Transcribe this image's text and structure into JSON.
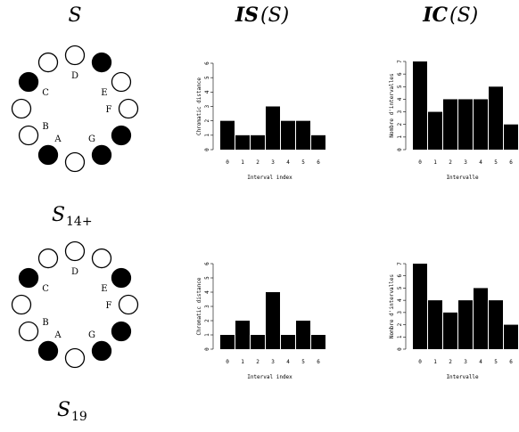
{
  "headers": {
    "set": "S",
    "is_prefix": "IS",
    "is_paren": "(S)",
    "ic_prefix": "IC",
    "ic_paren": "(S)"
  },
  "rows": [
    {
      "label_main": "S",
      "label_sub": "14+",
      "circle": {
        "labels": [
          "D",
          "E",
          "F",
          "G",
          "A",
          "B",
          "C"
        ],
        "filled": [
          false,
          true,
          false,
          false,
          true,
          true,
          false,
          true,
          false,
          false,
          true,
          false
        ]
      }
    },
    {
      "label_main": "S",
      "label_sub": "19",
      "circle": {
        "labels": [
          "D",
          "E",
          "F",
          "G",
          "A",
          "B",
          "C"
        ],
        "filled": [
          false,
          false,
          true,
          false,
          true,
          true,
          false,
          true,
          false,
          false,
          true,
          false
        ]
      }
    }
  ],
  "chart_data": [
    {
      "type": "bar",
      "xlabel": "Interval index",
      "ylabel": "Chromatic distance",
      "categories": [
        "0",
        "1",
        "2",
        "3",
        "4",
        "5",
        "6"
      ],
      "values": [
        2,
        1,
        1,
        3,
        2,
        2,
        1
      ],
      "ylim": [
        0,
        6
      ],
      "yticks": [
        "0",
        "1",
        "2",
        "3",
        "4",
        "5",
        "6"
      ]
    },
    {
      "type": "bar",
      "xlabel": "Intervalle",
      "ylabel": "Nombre d'intervalles",
      "categories": [
        "0",
        "1",
        "2",
        "3",
        "4",
        "5",
        "6"
      ],
      "values": [
        7,
        3,
        4,
        4,
        4,
        5,
        2
      ],
      "ylim": [
        0,
        7
      ],
      "yticks": [
        "0",
        "1",
        "2",
        "3",
        "4",
        "5",
        "6",
        "7"
      ]
    },
    {
      "type": "bar",
      "xlabel": "Interval index",
      "ylabel": "Chromatic distance",
      "categories": [
        "0",
        "1",
        "2",
        "3",
        "4",
        "5",
        "6"
      ],
      "values": [
        1,
        2,
        1,
        4,
        1,
        2,
        1
      ],
      "ylim": [
        0,
        6
      ],
      "yticks": [
        "0",
        "1",
        "2",
        "3",
        "4",
        "5",
        "6"
      ]
    },
    {
      "type": "bar",
      "xlabel": "Intervalle",
      "ylabel": "Nombre d'intervalles",
      "categories": [
        "0",
        "1",
        "2",
        "3",
        "4",
        "5",
        "6"
      ],
      "values": [
        7,
        4,
        3,
        4,
        5,
        4,
        2
      ],
      "ylim": [
        0,
        7
      ],
      "yticks": [
        "0",
        "1",
        "2",
        "3",
        "4",
        "5",
        "6",
        "7"
      ]
    }
  ]
}
